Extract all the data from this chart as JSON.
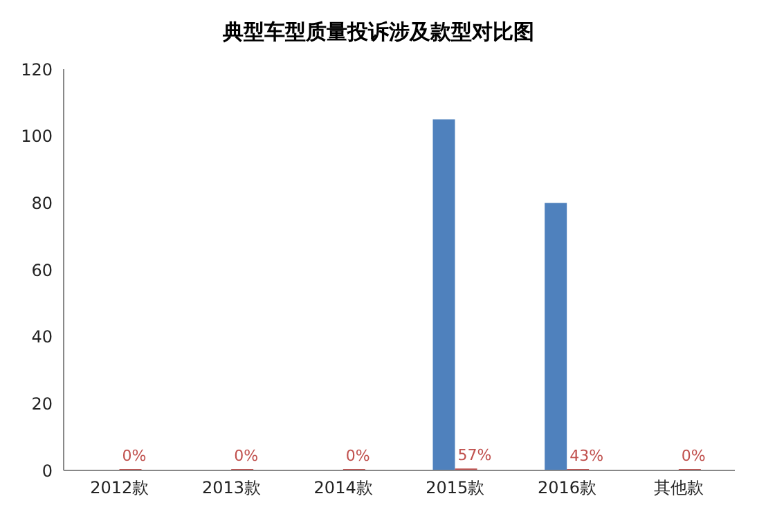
{
  "chart_data": {
    "type": "bar",
    "title": "典型车型质量投诉涉及款型对比图",
    "categories": [
      "2012款",
      "2013款",
      "2014款",
      "2015款",
      "2016款",
      "其他款"
    ],
    "series": [
      {
        "color": "#4f81bd",
        "values": [
          0,
          0,
          0,
          105,
          80,
          0
        ]
      },
      {
        "color": "#c0504d",
        "values": [
          0,
          0,
          0,
          0.57,
          0.43,
          0
        ],
        "value_labels": [
          "0%",
          "0%",
          "0%",
          "57%",
          "43%",
          "0%"
        ]
      }
    ],
    "ylim": [
      0,
      120
    ],
    "yticks": [
      0,
      20,
      40,
      60,
      80,
      100,
      120
    ],
    "grid": false,
    "legend": false
  }
}
